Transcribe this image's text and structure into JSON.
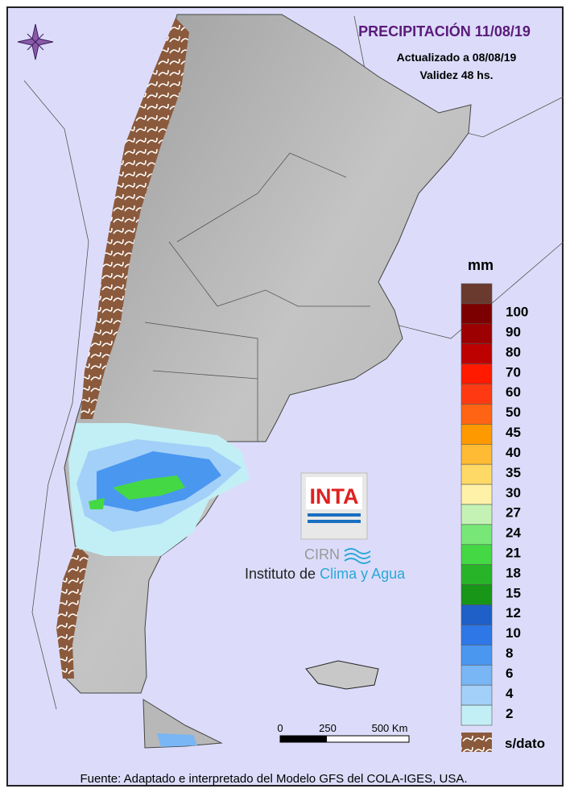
{
  "header": {
    "title": "PRECIPITACIÓN 11/08/19",
    "updated": "Actualizado a 08/08/19",
    "validity": "Validez 48 hs."
  },
  "legend": {
    "unit": "mm",
    "labels": [
      100,
      90,
      80,
      70,
      60,
      50,
      45,
      40,
      35,
      30,
      27,
      24,
      21,
      18,
      15,
      12,
      10,
      8,
      6,
      4,
      2
    ],
    "colors": [
      "#6b3a2e",
      "#7d0000",
      "#9c0000",
      "#bd0000",
      "#ff1a00",
      "#ff3a12",
      "#ff6414",
      "#ff9900",
      "#ffbb33",
      "#ffd966",
      "#fff2a8",
      "#c4f2b4",
      "#77e877",
      "#44d844",
      "#28b428",
      "#179617",
      "#1e5fc8",
      "#2d77e6",
      "#4a97f0",
      "#78b6f5",
      "#a3d0f8",
      "#c2eff5"
    ],
    "no_data": "s/dato"
  },
  "scale_bar": {
    "labels": [
      "0",
      "250",
      "500 Km"
    ]
  },
  "logo": {
    "brand": "INTA",
    "center": "CIRN",
    "institute": "Instituto de",
    "institute_highlight": "Clima y Agua"
  },
  "footer": "Fuente: Adaptado e interpretado del Modelo GFS del COLA-IGES, USA."
}
